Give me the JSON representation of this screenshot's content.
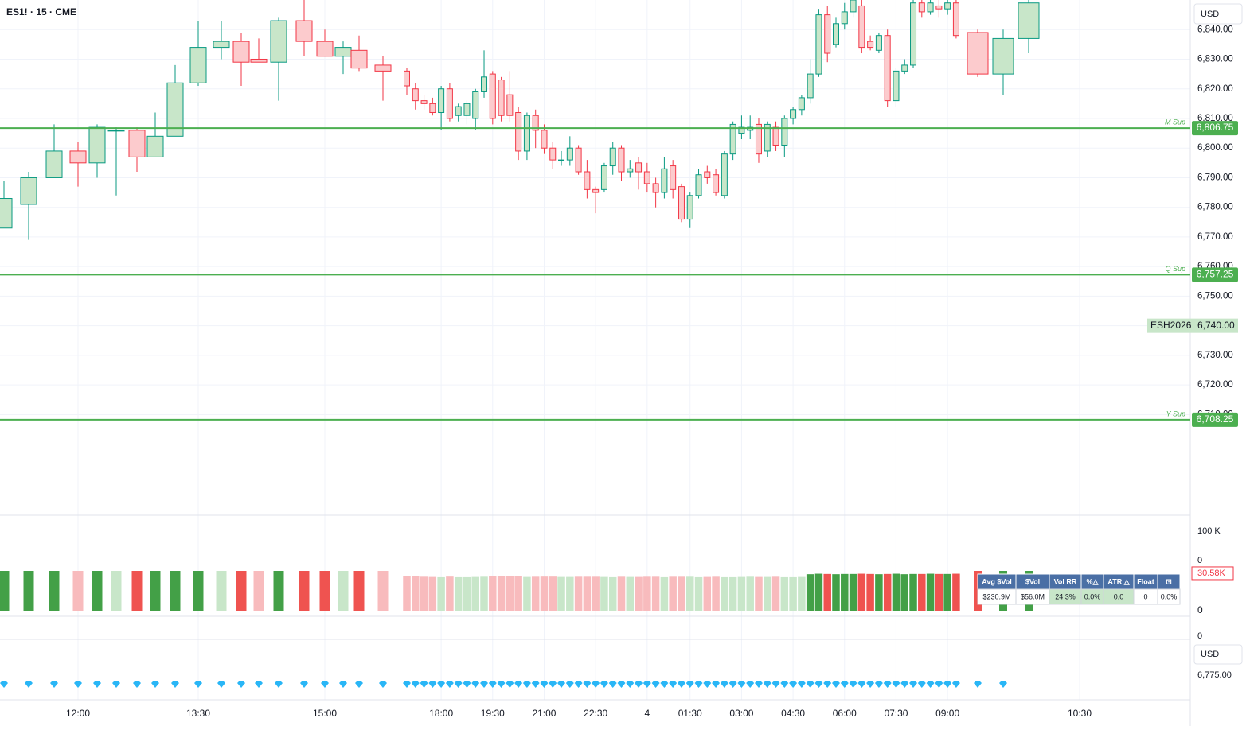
{
  "chart_data": {
    "type": "candlestick",
    "title": "ES1! · 15 · CME",
    "currency": "USD",
    "categories": [
      null,
      null,
      null,
      "12:00",
      null,
      null,
      null,
      null,
      null,
      "13:30",
      null,
      null,
      null,
      null,
      null,
      "15:00",
      null,
      null,
      null,
      null,
      null,
      null,
      null,
      "18:00",
      null,
      null,
      null,
      null,
      null,
      "19:30",
      null,
      null,
      null,
      null,
      null,
      "21:00",
      null,
      null,
      null,
      null,
      null,
      "22:30",
      null,
      null,
      null,
      null,
      null,
      "4",
      null,
      null,
      null,
      null,
      "01:30",
      null,
      null,
      null,
      null,
      null,
      "03:00",
      null,
      null,
      null,
      null,
      null,
      "04:30",
      null,
      null,
      null,
      null,
      null,
      "06:00",
      null,
      null,
      null,
      null,
      null,
      "07:30",
      null,
      null,
      null,
      null,
      null,
      "09:00",
      null,
      null,
      null,
      null,
      null,
      "10:30"
    ],
    "open": [
      6773,
      6781,
      6790,
      6799,
      6795,
      6806,
      6806,
      6797,
      6804,
      6822,
      6834,
      6836,
      6830,
      6829,
      6843,
      6836,
      6831,
      6833,
      6828,
      6826,
      6820,
      6816,
      6815,
      6812,
      6820,
      6811,
      6811,
      6810,
      6819,
      6825,
      6823,
      6818,
      6812,
      6799,
      6811,
      6806,
      6800,
      6796,
      6796,
      6800,
      6792,
      6786,
      6786,
      6794,
      6800,
      6792,
      6795,
      6792,
      6788,
      6785,
      6794,
      6787,
      6776,
      6784,
      6792,
      6791,
      6784,
      6798,
      6805,
      6806,
      6808,
      6799,
      6807,
      6801,
      6810,
      6813,
      6817,
      6825,
      6845,
      6835,
      6842,
      6846,
      6848,
      6836,
      6833,
      6838,
      6816,
      6826,
      6828,
      6849,
      6846,
      6848,
      6847,
      6849,
      6839,
      6825,
      6837,
      null,
      null
    ],
    "high": [
      6789,
      6792,
      6808,
      6802,
      6808,
      6807,
      6807,
      6812,
      6828,
      6843,
      6843,
      6839,
      6837,
      6844,
      6850,
      6840,
      6836,
      6838,
      6831,
      6827,
      6822,
      6818,
      6817,
      6821,
      6822,
      6815,
      6816,
      6820,
      6833,
      6826,
      6824,
      6826,
      6814,
      6812,
      6813,
      6808,
      6802,
      6799,
      6804,
      6801,
      6796,
      6787,
      6795,
      6802,
      6801,
      6796,
      6797,
      6795,
      6790,
      6797,
      6796,
      6788,
      6785,
      6793,
      6794,
      6793,
      6799,
      6809,
      6811,
      6811,
      6810,
      6809,
      6809,
      6811,
      6814,
      6818,
      6830,
      6847,
      6848,
      6844,
      6849,
      6851,
      6850,
      6838,
      6839,
      6840,
      6827,
      6830,
      6852,
      6852,
      6851,
      6850,
      6852,
      6852,
      6840,
      6840,
      6852,
      null,
      null
    ],
    "low": [
      6773,
      6769,
      6790,
      6787,
      6790,
      6784,
      6792,
      6797,
      6804,
      6821,
      6830,
      6821,
      6829,
      6816,
      6831,
      6831,
      6825,
      6826,
      6816,
      6818,
      6813,
      6813,
      6811,
      6806,
      6809,
      6809,
      6808,
      6806,
      6817,
      6808,
      6809,
      6809,
      6796,
      6796,
      6800,
      6798,
      6793,
      6794,
      6794,
      6791,
      6783,
      6778,
      6785,
      6791,
      6789,
      6790,
      6786,
      6785,
      6780,
      6783,
      6783,
      6775,
      6773,
      6783,
      6788,
      6784,
      6783,
      6796,
      6803,
      6803,
      6795,
      6797,
      6799,
      6797,
      6808,
      6811,
      6815,
      6824,
      6829,
      6834,
      6840,
      6844,
      6832,
      6833,
      6832,
      6814,
      6814,
      6825,
      6827,
      6844,
      6845,
      6844,
      6845,
      6837,
      6824,
      6818,
      6832,
      null,
      null
    ],
    "close": [
      6783,
      6790,
      6799,
      6795,
      6807,
      6806,
      6797,
      6804,
      6822,
      6834,
      6836,
      6829,
      6829,
      6843,
      6836,
      6831,
      6834,
      6827,
      6826,
      6821,
      6816,
      6815,
      6812,
      6820,
      6810,
      6814,
      6815,
      6819,
      6824,
      6810,
      6811,
      6811,
      6799,
      6811,
      6806,
      6800,
      6796,
      6796,
      6800,
      6792,
      6786,
      6785,
      6794,
      6800,
      6792,
      6793,
      6792,
      6788,
      6785,
      6793,
      6786,
      6776,
      6784,
      6791,
      6790,
      6785,
      6798,
      6808,
      6807,
      6807,
      6798,
      6808,
      6801,
      6810,
      6813,
      6817,
      6825,
      6845,
      6832,
      6842,
      6846,
      6850,
      6834,
      6834,
      6838,
      6816,
      6826,
      6828,
      6849,
      6846,
      6849,
      6847,
      6849,
      6838,
      6825,
      6837,
      6849,
      null,
      null
    ],
    "volume": [
      32500,
      32500,
      32500,
      32500,
      32500,
      32500,
      32500,
      32500,
      32500,
      32500,
      32500,
      32500,
      32500,
      32500,
      32500,
      32500,
      32500,
      32500,
      32500,
      28600,
      28600,
      28400,
      28200,
      28000,
      28500,
      28000,
      28000,
      28200,
      28400,
      28600,
      28600,
      28600,
      28600,
      28200,
      28400,
      28500,
      28500,
      28200,
      28200,
      28400,
      28400,
      28400,
      28200,
      28000,
      28400,
      28200,
      28200,
      28400,
      28400,
      28000,
      28400,
      28400,
      28400,
      28000,
      28200,
      28400,
      28000,
      28000,
      28200,
      28400,
      28200,
      28200,
      28400,
      28000,
      28000,
      28200,
      29800,
      30200,
      30000,
      29800,
      30000,
      30000,
      30200,
      30000,
      29800,
      30000,
      30200,
      29800,
      30000,
      30000,
      30200,
      30000,
      30000,
      30200,
      32500,
      32500,
      32500,
      null,
      null
    ],
    "volume_ylim": [
      0,
      37700
    ],
    "volume_yticks": [
      0
    ],
    "volume_last": {
      "value": 30580,
      "label": "30.58K"
    },
    "ylim": [
      6676,
      6850
    ],
    "yticks": [
      {
        "value": 6710,
        "label": "6,710.00"
      },
      {
        "value": 6720,
        "label": "6,720.00"
      },
      {
        "value": 6730,
        "label": "6,730.00"
      },
      {
        "value": 6740,
        "label": "6,740.00"
      },
      {
        "value": 6750,
        "label": "6,750.00"
      },
      {
        "value": 6760,
        "label": "6,760.00"
      },
      {
        "value": 6770,
        "label": "6,770.00"
      },
      {
        "value": 6780,
        "label": "6,780.00"
      },
      {
        "value": 6790,
        "label": "6,790.00"
      },
      {
        "value": 6800,
        "label": "6,800.00"
      },
      {
        "value": 6810,
        "label": "6,810.00"
      },
      {
        "value": 6820,
        "label": "6,820.00"
      },
      {
        "value": 6830,
        "label": "6,830.00"
      },
      {
        "value": 6840,
        "label": "6,840.00"
      }
    ],
    "grid": true,
    "levels": [
      {
        "name": "M Sup",
        "value": 6806.75,
        "label": "6,806.75"
      },
      {
        "name": "Q Sup",
        "value": 6757.25,
        "label": "6,757.25"
      },
      {
        "name": "Y Sup",
        "value": 6708.25,
        "label": "6,708.25"
      }
    ],
    "symbol_tag": {
      "name": "ESH2026",
      "value": 6740,
      "label": "6,740.00"
    },
    "panes": {
      "indicator": {
        "ticks": [
          {
            "value": 100000,
            "label": "100 K"
          },
          0
        ]
      },
      "lower": {
        "ticks": [
          0
        ]
      },
      "bottom": {
        "currency": "USD",
        "ticks": [
          {
            "value": 6775,
            "label": "6,775.00"
          }
        ]
      }
    }
  },
  "table": {
    "header": [
      "Avg $Vol",
      "$Vol",
      "Vol RR",
      "%△",
      "ATR △",
      "Float",
      "⊡"
    ],
    "row": [
      "$230.9M",
      "$56.0M",
      "24.3%",
      "0.0%",
      "0.0",
      "0",
      "0.0%"
    ]
  }
}
